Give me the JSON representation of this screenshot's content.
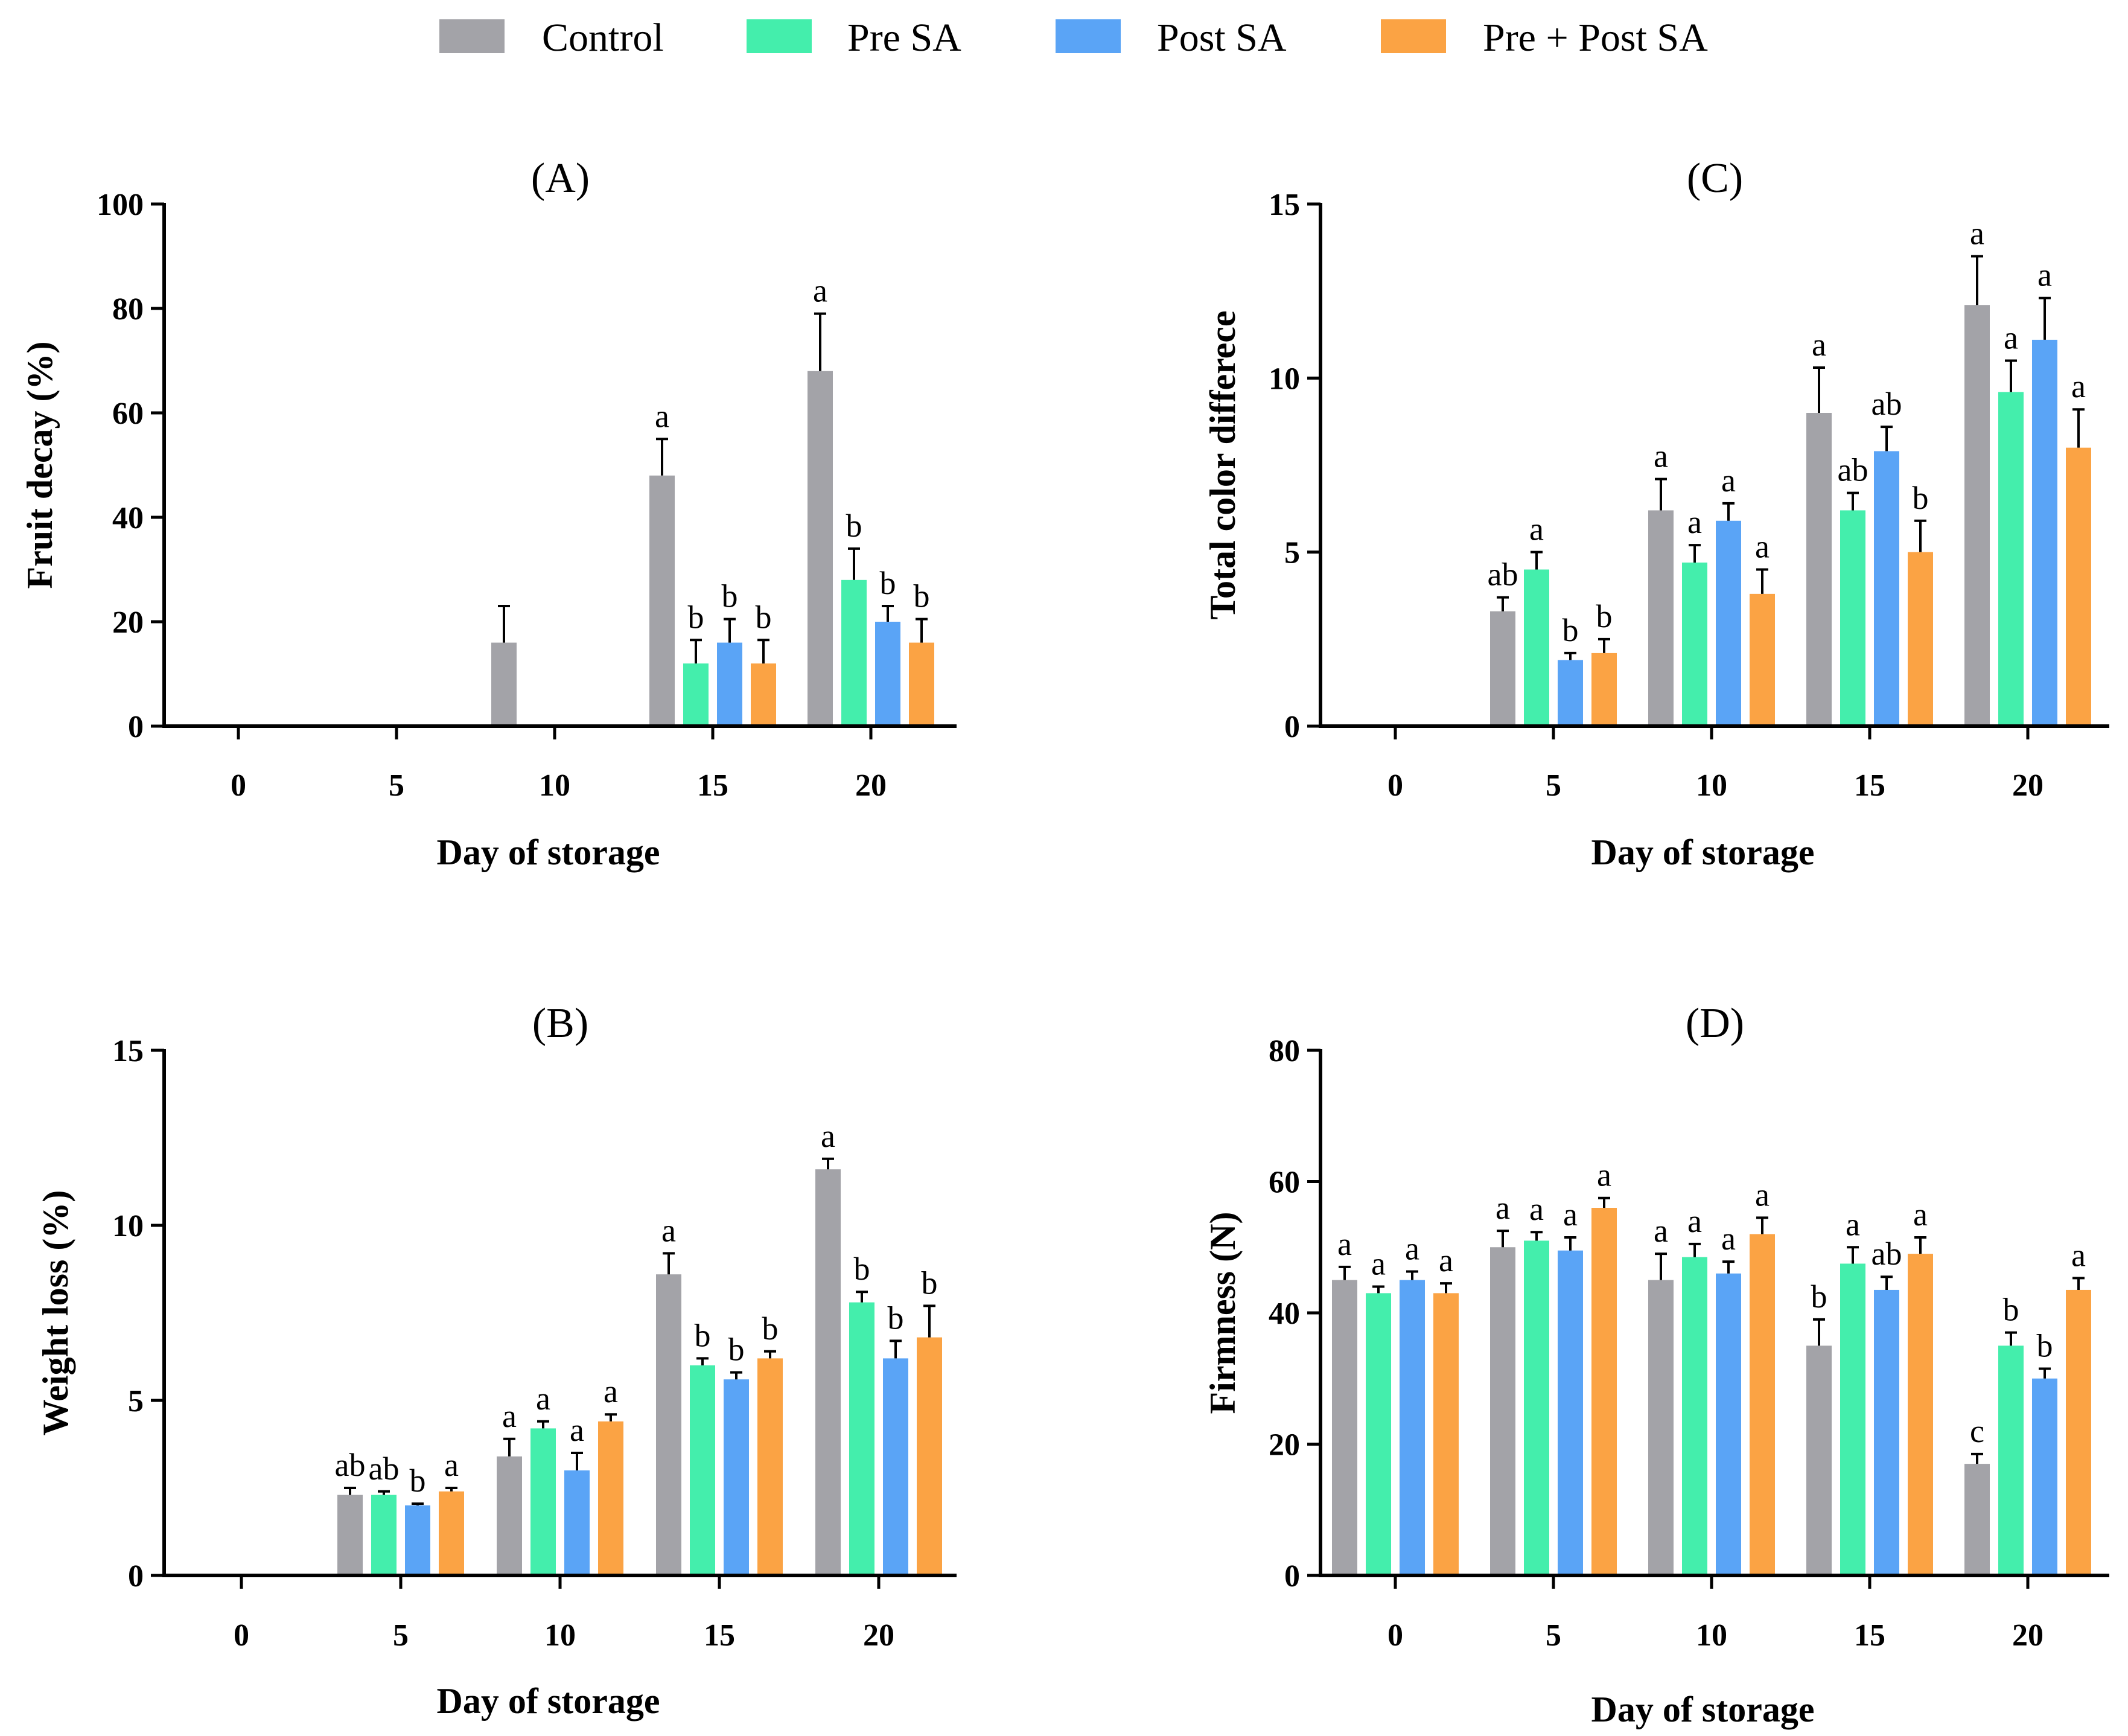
{
  "colors": {
    "control": "#a3a3a8",
    "pre_sa": "#44eeac",
    "post_sa": "#5aa4f6",
    "pre_post_sa": "#fba344"
  },
  "legend": {
    "items": [
      {
        "key": "control",
        "label": "Control"
      },
      {
        "key": "pre_sa",
        "label": "Pre SA"
      },
      {
        "key": "post_sa",
        "label": "Post SA"
      },
      {
        "key": "pre_post_sa",
        "label": "Pre + Post SA"
      }
    ]
  },
  "chart_data": [
    {
      "id": "A",
      "type": "bar",
      "title": "(A)",
      "xlabel": "Day of storage",
      "ylabel": "Fruit decay (%)",
      "ylim": [
        0,
        100
      ],
      "yticks": [
        0,
        20,
        40,
        60,
        80,
        100
      ],
      "categories": [
        "0",
        "5",
        "10",
        "15",
        "20"
      ],
      "series": [
        {
          "name": "Control",
          "values": [
            0,
            0,
            16,
            48,
            68
          ],
          "errors": [
            0,
            0,
            7,
            7,
            11
          ],
          "letters": [
            "",
            "",
            "",
            "a",
            "a"
          ]
        },
        {
          "name": "Pre SA",
          "values": [
            0,
            0,
            0,
            12,
            28
          ],
          "errors": [
            0,
            0,
            0,
            4.5,
            6
          ],
          "letters": [
            "",
            "",
            "",
            "b",
            "b"
          ]
        },
        {
          "name": "Post SA",
          "values": [
            0,
            0,
            0,
            16,
            20
          ],
          "errors": [
            0,
            0,
            0,
            4.5,
            3
          ],
          "letters": [
            "",
            "",
            "",
            "b",
            "b"
          ]
        },
        {
          "name": "Pre + Post SA",
          "values": [
            0,
            0,
            0,
            12,
            16
          ],
          "errors": [
            0,
            0,
            0,
            4.5,
            4.5
          ],
          "letters": [
            "",
            "",
            "",
            "b",
            "b"
          ]
        }
      ]
    },
    {
      "id": "C",
      "type": "bar",
      "title": "(C)",
      "xlabel": "Day of storage",
      "ylabel": "Total color differece",
      "ylim": [
        0,
        15
      ],
      "yticks": [
        0,
        5,
        10,
        15
      ],
      "categories": [
        "0",
        "5",
        "10",
        "15",
        "20"
      ],
      "series": [
        {
          "name": "Control",
          "values": [
            0,
            3.3,
            6.2,
            9.0,
            12.1
          ],
          "errors": [
            0,
            0.4,
            0.9,
            1.3,
            1.4
          ],
          "letters": [
            "",
            "ab",
            "a",
            "a",
            "a"
          ]
        },
        {
          "name": "Pre SA",
          "values": [
            0,
            4.5,
            4.7,
            6.2,
            9.6
          ],
          "errors": [
            0,
            0.5,
            0.5,
            0.5,
            0.9
          ],
          "letters": [
            "",
            "a",
            "a",
            "ab",
            "a"
          ]
        },
        {
          "name": "Post SA",
          "values": [
            0,
            1.9,
            5.9,
            7.9,
            11.1
          ],
          "errors": [
            0,
            0.2,
            0.5,
            0.7,
            1.2
          ],
          "letters": [
            "",
            "b",
            "a",
            "ab",
            "a"
          ]
        },
        {
          "name": "Pre + Post SA",
          "values": [
            0,
            2.1,
            3.8,
            5.0,
            8.0
          ],
          "errors": [
            0,
            0.4,
            0.7,
            0.9,
            1.1
          ],
          "letters": [
            "",
            "b",
            "a",
            "b",
            "a"
          ]
        }
      ]
    },
    {
      "id": "B",
      "type": "bar",
      "title": "(B)",
      "xlabel": "Day of storage",
      "ylabel": "Weight loss (%)",
      "ylim": [
        0,
        15
      ],
      "yticks": [
        0,
        5,
        10,
        15
      ],
      "categories": [
        "0",
        "5",
        "10",
        "15",
        "20"
      ],
      "series": [
        {
          "name": "Control",
          "values": [
            0,
            2.3,
            3.4,
            8.6,
            11.6
          ],
          "errors": [
            0,
            0.2,
            0.5,
            0.6,
            0.3
          ],
          "letters": [
            "",
            "ab",
            "a",
            "a",
            "a"
          ]
        },
        {
          "name": "Pre SA",
          "values": [
            0,
            2.3,
            4.2,
            6.0,
            7.8
          ],
          "errors": [
            0,
            0.1,
            0.2,
            0.2,
            0.3
          ],
          "letters": [
            "",
            "ab",
            "a",
            "b",
            "b"
          ]
        },
        {
          "name": "Post SA",
          "values": [
            0,
            2.0,
            3.0,
            5.6,
            6.2
          ],
          "errors": [
            0,
            0.05,
            0.5,
            0.2,
            0.5
          ],
          "letters": [
            "",
            "b",
            "a",
            "b",
            "b"
          ]
        },
        {
          "name": "Pre + Post SA",
          "values": [
            0,
            2.4,
            4.4,
            6.2,
            6.8
          ],
          "errors": [
            0,
            0.1,
            0.2,
            0.2,
            0.9
          ],
          "letters": [
            "",
            "a",
            "a",
            "b",
            "b"
          ]
        }
      ]
    },
    {
      "id": "D",
      "type": "bar",
      "title": "(D)",
      "xlabel": "Day of storage",
      "ylabel": "Firmness (N)",
      "ylim": [
        0,
        80
      ],
      "yticks": [
        0,
        20,
        40,
        60,
        80
      ],
      "categories": [
        "0",
        "5",
        "10",
        "15",
        "20"
      ],
      "series": [
        {
          "name": "Control",
          "values": [
            45,
            50,
            45,
            35,
            17
          ],
          "errors": [
            2,
            2.5,
            4,
            4,
            1.5
          ],
          "letters": [
            "a",
            "a",
            "a",
            "b",
            "c"
          ]
        },
        {
          "name": "Pre SA",
          "values": [
            43,
            51,
            48.5,
            47.5,
            35
          ],
          "errors": [
            1,
            1.3,
            2,
            2.5,
            2
          ],
          "letters": [
            "a",
            "a",
            "a",
            "a",
            "b"
          ]
        },
        {
          "name": "Post SA",
          "values": [
            45,
            49.5,
            46,
            43.5,
            30
          ],
          "errors": [
            1.3,
            2,
            1.8,
            2,
            1.5
          ],
          "letters": [
            "a",
            "a",
            "a",
            "ab",
            "b"
          ]
        },
        {
          "name": "Pre + Post SA",
          "values": [
            43,
            56,
            52,
            49,
            43.5
          ],
          "errors": [
            1.5,
            1.5,
            2.5,
            2.5,
            1.8
          ],
          "letters": [
            "a",
            "a",
            "a",
            "a",
            "a"
          ]
        }
      ]
    }
  ]
}
